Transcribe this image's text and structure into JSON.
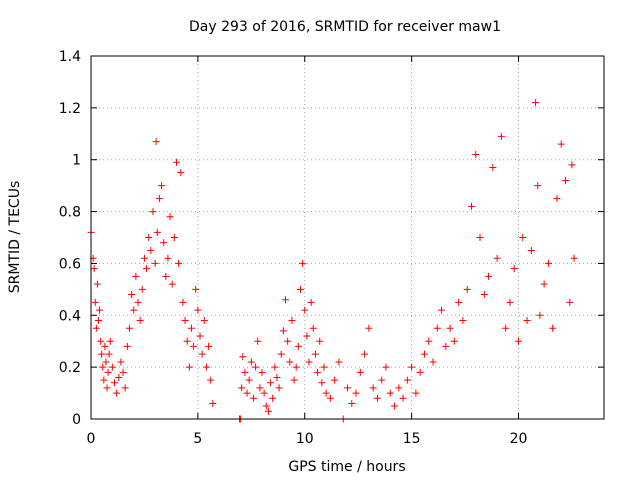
{
  "chart_data": {
    "type": "scatter",
    "title": "Day 293 of 2016, SRMTID for receiver maw1",
    "xlabel": "GPS time / hours",
    "ylabel": "SRMTID / TECUs",
    "xlim": [
      0,
      24
    ],
    "ylim": [
      0,
      1.4
    ],
    "xticks": [
      0,
      5,
      10,
      15,
      20
    ],
    "xtick_labels": [
      "0",
      "5",
      "10",
      "15",
      "20"
    ],
    "yticks": [
      0,
      0.2,
      0.4,
      0.6,
      0.8,
      1.0,
      1.2,
      1.4
    ],
    "ytick_labels": [
      "0",
      "0.2",
      "0.4",
      "0.6",
      "0.8",
      "1",
      "1.2",
      "1.4"
    ],
    "grid": true,
    "marker": "plus",
    "color": "#ff0000",
    "series": [
      {
        "name": "SRMTID",
        "x": [
          0.0,
          0.1,
          0.15,
          0.2,
          0.25,
          0.3,
          0.35,
          0.4,
          0.45,
          0.5,
          0.55,
          0.6,
          0.65,
          0.7,
          0.75,
          0.8,
          0.85,
          0.9,
          1.0,
          1.1,
          1.2,
          1.3,
          1.4,
          1.5,
          1.6,
          1.7,
          1.8,
          1.9,
          2.0,
          2.1,
          2.2,
          2.3,
          2.4,
          2.5,
          2.6,
          2.7,
          2.8,
          2.9,
          3.0,
          3.05,
          3.1,
          3.2,
          3.3,
          3.4,
          3.5,
          3.6,
          3.7,
          3.8,
          3.9,
          4.0,
          4.1,
          4.2,
          4.3,
          4.4,
          4.5,
          4.6,
          4.7,
          4.8,
          4.9,
          5.0,
          5.1,
          5.2,
          5.3,
          5.4,
          5.5,
          5.6,
          5.7,
          6.95,
          7.0,
          7.05,
          7.1,
          7.2,
          7.3,
          7.4,
          7.5,
          7.6,
          7.7,
          7.8,
          7.9,
          8.0,
          8.1,
          8.2,
          8.3,
          8.4,
          8.5,
          8.6,
          8.7,
          8.8,
          8.9,
          9.0,
          9.1,
          9.2,
          9.3,
          9.4,
          9.5,
          9.6,
          9.7,
          9.8,
          9.9,
          10.0,
          10.1,
          10.2,
          10.3,
          10.4,
          10.5,
          10.6,
          10.7,
          10.8,
          10.9,
          11.0,
          11.2,
          11.4,
          11.6,
          11.8,
          12.0,
          12.2,
          12.4,
          12.6,
          12.8,
          13.0,
          13.2,
          13.4,
          13.6,
          13.8,
          14.0,
          14.2,
          14.4,
          14.6,
          14.8,
          15.0,
          15.2,
          15.4,
          15.6,
          15.8,
          16.0,
          16.2,
          16.4,
          16.6,
          16.8,
          17.0,
          17.2,
          17.4,
          17.6,
          17.8,
          18.0,
          18.2,
          18.4,
          18.6,
          18.8,
          19.0,
          19.2,
          19.4,
          19.6,
          19.8,
          20.0,
          20.2,
          20.4,
          20.6,
          20.8,
          20.9,
          21.0,
          21.2,
          21.4,
          21.6,
          21.8,
          22.0,
          22.2,
          22.4,
          22.5,
          22.6
        ],
        "y": [
          0.72,
          0.62,
          0.58,
          0.45,
          0.35,
          0.52,
          0.38,
          0.42,
          0.3,
          0.25,
          0.2,
          0.15,
          0.28,
          0.22,
          0.12,
          0.18,
          0.25,
          0.3,
          0.2,
          0.14,
          0.1,
          0.16,
          0.22,
          0.18,
          0.12,
          0.28,
          0.35,
          0.48,
          0.42,
          0.55,
          0.45,
          0.38,
          0.5,
          0.62,
          0.58,
          0.7,
          0.65,
          0.8,
          0.6,
          1.07,
          0.72,
          0.85,
          0.9,
          0.68,
          0.55,
          0.62,
          0.78,
          0.52,
          0.7,
          0.99,
          0.6,
          0.95,
          0.45,
          0.38,
          0.3,
          0.2,
          0.35,
          0.28,
          0.5,
          0.42,
          0.32,
          0.25,
          0.38,
          0.2,
          0.28,
          0.15,
          0.06,
          0.0,
          0.0,
          0.12,
          0.24,
          0.18,
          0.1,
          0.15,
          0.22,
          0.08,
          0.2,
          0.3,
          0.12,
          0.18,
          0.1,
          0.05,
          0.03,
          0.14,
          0.08,
          0.2,
          0.16,
          0.12,
          0.25,
          0.34,
          0.46,
          0.3,
          0.22,
          0.38,
          0.15,
          0.2,
          0.28,
          0.5,
          0.6,
          0.42,
          0.32,
          0.22,
          0.45,
          0.35,
          0.25,
          0.18,
          0.3,
          0.14,
          0.2,
          0.1,
          0.08,
          0.15,
          0.22,
          0.0,
          0.12,
          0.06,
          0.1,
          0.18,
          0.25,
          0.35,
          0.12,
          0.08,
          0.15,
          0.2,
          0.1,
          0.05,
          0.12,
          0.08,
          0.15,
          0.2,
          0.1,
          0.18,
          0.25,
          0.3,
          0.22,
          0.35,
          0.42,
          0.28,
          0.35,
          0.3,
          0.45,
          0.38,
          0.5,
          0.82,
          1.02,
          0.7,
          0.48,
          0.55,
          0.97,
          0.62,
          1.09,
          0.35,
          0.45,
          0.58,
          0.3,
          0.7,
          0.38,
          0.65,
          1.22,
          0.9,
          0.4,
          0.52,
          0.6,
          0.35,
          0.85,
          1.06,
          0.92,
          0.45,
          0.98,
          0.62
        ]
      }
    ]
  }
}
